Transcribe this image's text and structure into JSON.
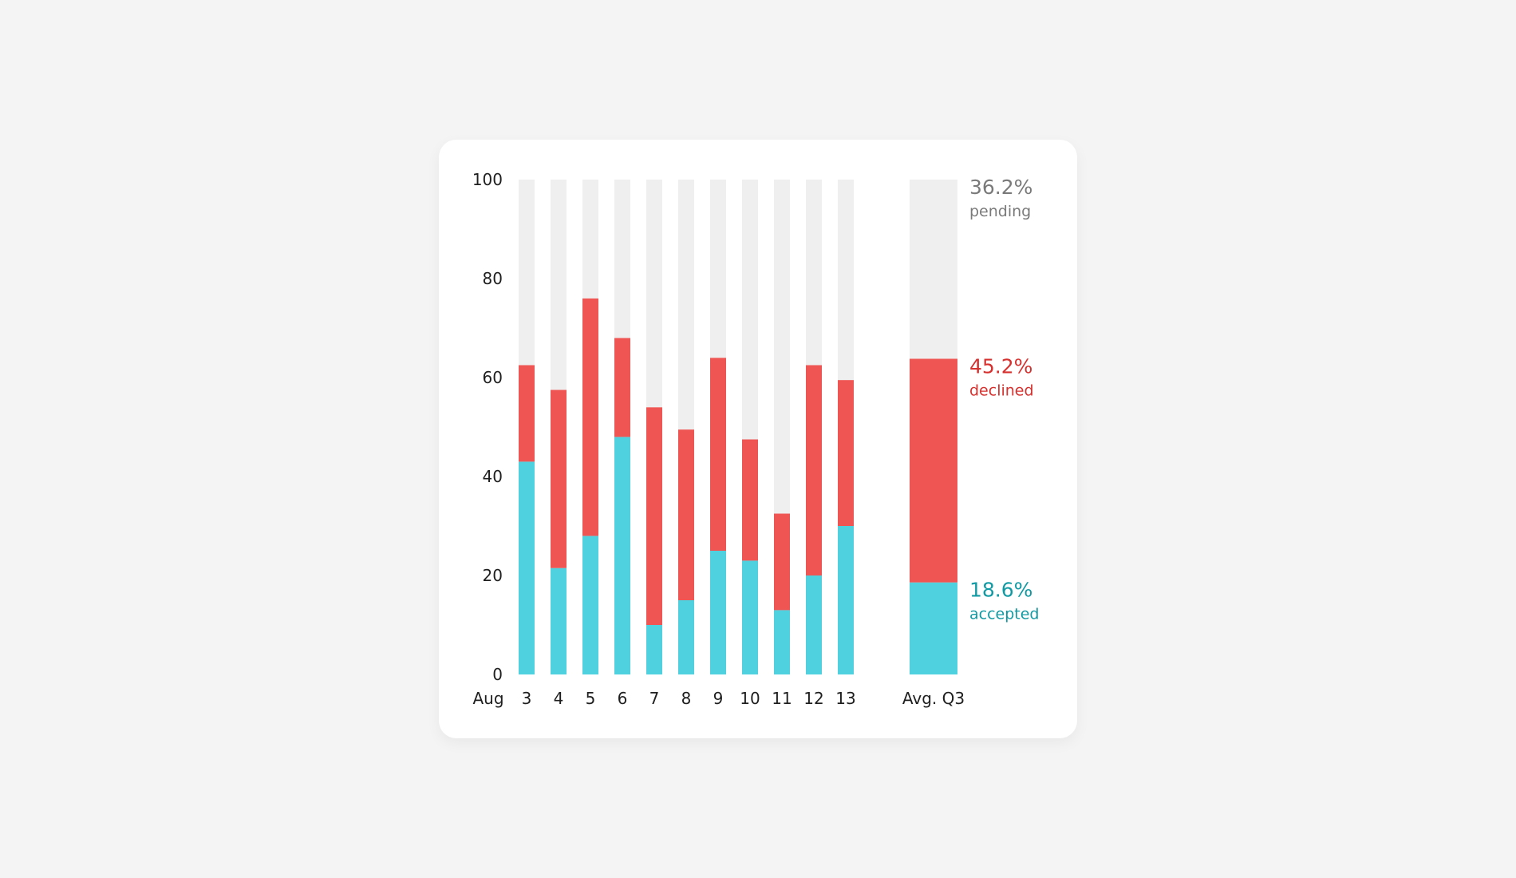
{
  "chart_data": {
    "type": "bar",
    "stacked": true,
    "x_prefix_label": "Aug",
    "categories": [
      "3",
      "4",
      "5",
      "6",
      "7",
      "8",
      "9",
      "10",
      "11",
      "12",
      "13"
    ],
    "series": [
      {
        "name": "accepted",
        "color": "#4fd1e0",
        "values": [
          43,
          21.5,
          28,
          48,
          10,
          15,
          25,
          23,
          13,
          20,
          30
        ]
      },
      {
        "name": "declined",
        "color": "#ee5553",
        "values": [
          19.5,
          36,
          48,
          20,
          44,
          34.5,
          39,
          24.5,
          19.5,
          42.5,
          29.5
        ]
      },
      {
        "name": "pending",
        "color": "#efefef",
        "values": [
          37.5,
          42.5,
          24,
          32,
          46,
          50.5,
          36,
          52.5,
          67.5,
          37.5,
          40.5
        ]
      }
    ],
    "ylim": [
      0,
      100
    ],
    "yticks": [
      "0",
      "20",
      "40",
      "60",
      "80",
      "100"
    ],
    "ytick_values": [
      0,
      20,
      40,
      60,
      80,
      100
    ],
    "summary": {
      "label": "Avg. Q3",
      "segments": [
        {
          "name": "accepted",
          "value": 18.6,
          "text": "18.6%",
          "label": "accepted",
          "color": "#4fd1e0",
          "text_color": "#119aa3"
        },
        {
          "name": "declined",
          "value": 45.2,
          "text": "45.2%",
          "label": "declined",
          "color": "#ee5553",
          "text_color": "#d6312f"
        },
        {
          "name": "pending",
          "value": 36.2,
          "text": "36.2%",
          "label": "pending",
          "color": "#efefef",
          "text_color": "#7a7a7a"
        }
      ]
    }
  }
}
